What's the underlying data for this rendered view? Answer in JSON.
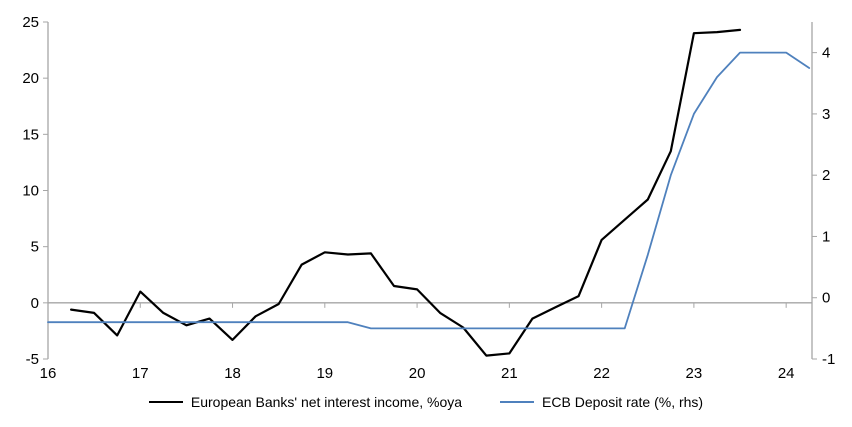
{
  "chart_data": {
    "type": "line",
    "title": "",
    "axes": {
      "left": {
        "min": -5,
        "max": 25,
        "ticks": [
          25,
          20,
          15,
          10,
          5,
          0,
          -5
        ]
      },
      "right": {
        "min": -1,
        "max": 4.5,
        "ticks": [
          4,
          3,
          2,
          1,
          0,
          -1
        ]
      },
      "x": {
        "min": 16,
        "max": 24.28,
        "ticks": [
          16,
          17,
          18,
          19,
          20,
          21,
          22,
          23,
          24
        ]
      }
    },
    "grid": "off",
    "zero_line": true,
    "series": [
      {
        "name": "European Banks' net interest income, %oya",
        "axis": "left",
        "color": "#000000",
        "width": 2.2,
        "x_start": 16.25,
        "x_step": 0.25,
        "values": [
          -0.6,
          -0.9,
          -2.9,
          1.0,
          -0.9,
          -2.0,
          -1.4,
          -3.3,
          -1.2,
          -0.1,
          3.4,
          4.5,
          4.3,
          4.4,
          1.5,
          1.2,
          -0.9,
          -2.2,
          -4.7,
          -4.5,
          -1.4,
          -0.4,
          0.6,
          5.6,
          7.4,
          9.2,
          13.5,
          24.0,
          24.1,
          24.3
        ]
      },
      {
        "name": "ECB Deposit rate (%, rhs)",
        "axis": "right",
        "color": "#4f81bd",
        "width": 1.8,
        "x_start": 16.0,
        "x_step": 0.25,
        "values": [
          -0.4,
          -0.4,
          -0.4,
          -0.4,
          -0.4,
          -0.4,
          -0.4,
          -0.4,
          -0.4,
          -0.4,
          -0.4,
          -0.4,
          -0.4,
          -0.4,
          -0.5,
          -0.5,
          -0.5,
          -0.5,
          -0.5,
          -0.5,
          -0.5,
          -0.5,
          -0.5,
          -0.5,
          -0.5,
          -0.5,
          0.7,
          2.0,
          3.0,
          3.6,
          4.0,
          4.0,
          4.0,
          3.75
        ]
      }
    ],
    "legend": {
      "position": "bottom",
      "entries": [
        "European Banks' net interest income, %oya",
        "ECB Deposit rate (%, rhs)"
      ]
    }
  },
  "colors": {
    "axis": "#a6a6a6",
    "text": "#000000",
    "background": "#ffffff",
    "series_black": "#000000",
    "series_blue": "#4f81bd"
  }
}
